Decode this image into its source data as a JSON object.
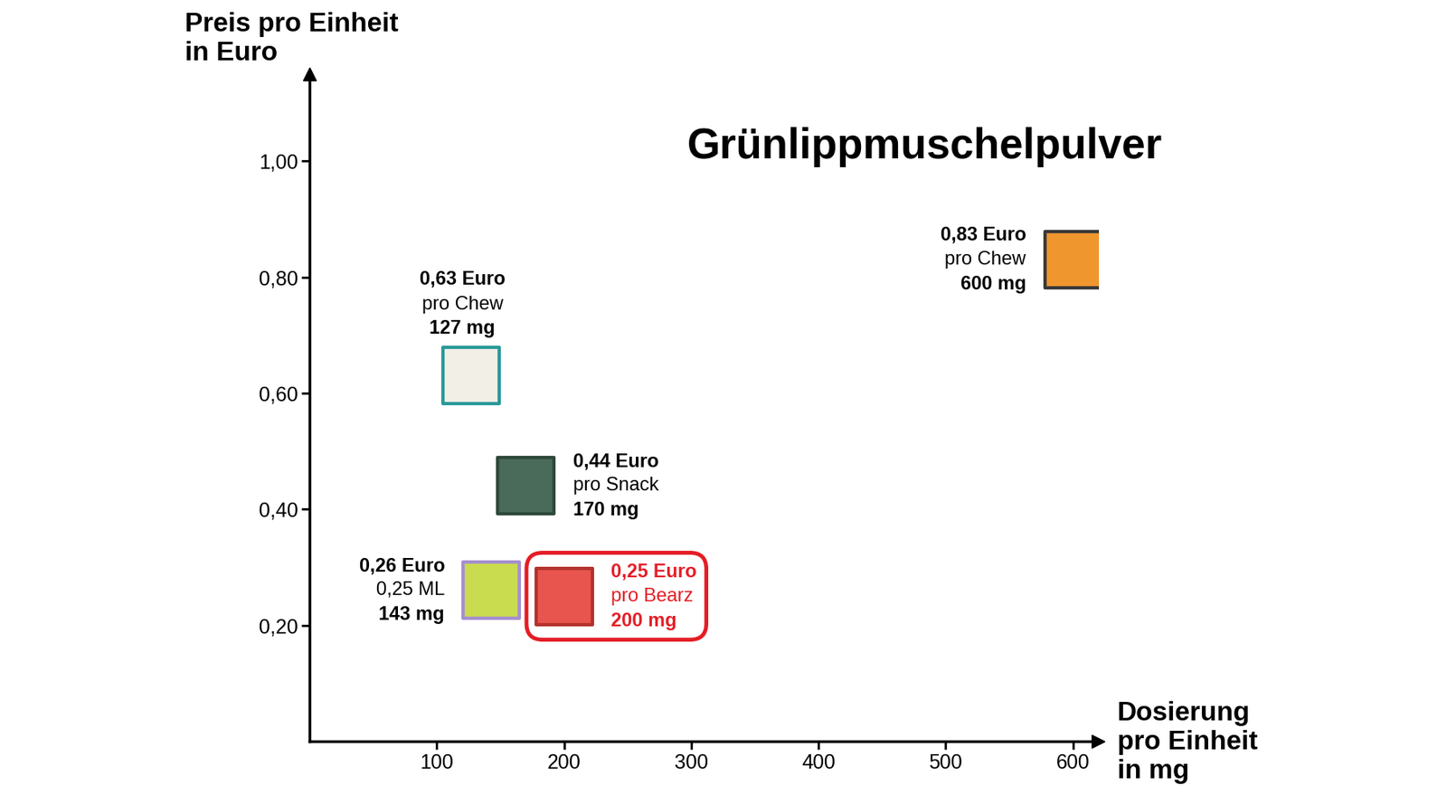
{
  "chart_data": {
    "type": "scatter",
    "title": "Grünlippmuschelpulver",
    "x_label": "Dosierung\npro Einheit\nin mg",
    "y_label": "Preis pro Einheit\nin Euro",
    "x": [
      127,
      170,
      143,
      200,
      600
    ],
    "values": [
      0.63,
      0.44,
      0.26,
      0.25,
      0.83
    ],
    "value_labels": [
      "0,63 Euro",
      "0,44 Euro",
      "0,26 Euro",
      "0,25 Euro",
      "0,83 Euro"
    ],
    "unit_labels": [
      "pro Chew",
      "pro Snack",
      "0,25 ML",
      "pro Bearz",
      "pro Chew"
    ],
    "x_labels": [
      "127 mg",
      "170 mg",
      "143 mg",
      "200 mg",
      "600 mg"
    ],
    "colors": [
      "#000000",
      "#000000",
      "#000000",
      "#e41e26",
      "#000000"
    ],
    "xlim": [
      0,
      620
    ],
    "xticks": [
      100,
      200,
      300,
      400,
      500,
      600
    ],
    "ylim": [
      0,
      1.15
    ],
    "yticks": [
      {
        "value": 0.2,
        "label": "0,20"
      },
      {
        "value": 0.4,
        "label": "0,40"
      },
      {
        "value": 0.6,
        "label": "0,60"
      },
      {
        "value": 0.8,
        "label": "0,80"
      },
      {
        "value": 1.0,
        "label": "1,00"
      }
    ],
    "grid": false
  }
}
